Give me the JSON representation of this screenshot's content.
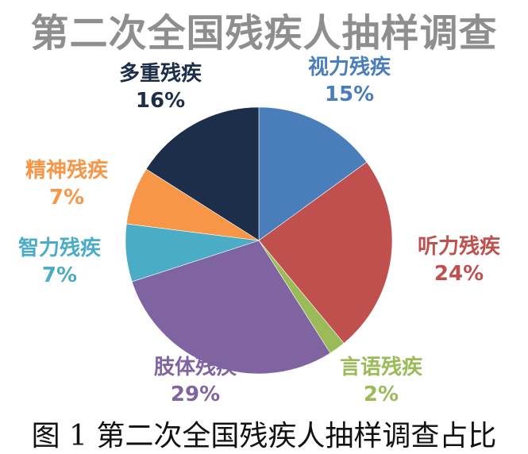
{
  "chart_data": {
    "type": "pie",
    "title": "第二次全国残疾人抽样调查",
    "categories": [
      "视力残疾",
      "听力残疾",
      "言语残疾",
      "肢体残疾",
      "智力残疾",
      "精神残疾",
      "多重残疾"
    ],
    "values": [
      15,
      24,
      2,
      29,
      7,
      7,
      16
    ],
    "value_labels": [
      "15%",
      "24%",
      "2%",
      "29%",
      "7%",
      "7%",
      "16%"
    ],
    "colors": [
      "#4a7ebb",
      "#c0504d",
      "#9bbb59",
      "#8064a2",
      "#4bacc6",
      "#f79646",
      "#1c2e4a"
    ],
    "label_colors": [
      "#4a7ebb",
      "#c0504d",
      "#9bbb59",
      "#8064a2",
      "#4bacc6",
      "#f79646",
      "#1c2e4a"
    ],
    "start": "12 o'clock",
    "direction": "clockwise"
  },
  "caption": "图 1 第二次全国残疾人抽样调查占比"
}
